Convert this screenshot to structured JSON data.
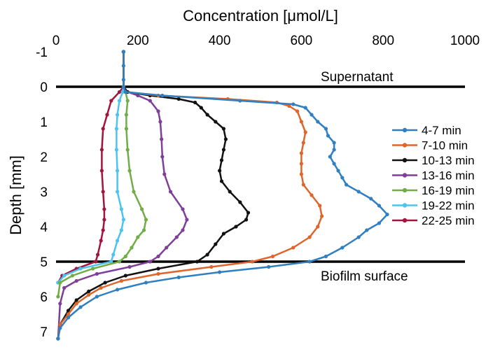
{
  "chart_data": {
    "type": "line",
    "xlabel": "Concentration [μmol/L]",
    "ylabel": "Depth [mm]",
    "xlim": [
      0,
      1000
    ],
    "ylim": [
      -1,
      7.2
    ],
    "x_axis_position": "top",
    "y_axis_inverted": true,
    "grid": false,
    "legend_position": "right",
    "x_ticks": [
      "0",
      "200",
      "400",
      "600",
      "800",
      "1000"
    ],
    "y_ticks": [
      "-1",
      "0",
      "1",
      "2",
      "3",
      "4",
      "5",
      "6",
      "7"
    ],
    "annotations": [
      {
        "text": "Supernatant",
        "depth": 0
      },
      {
        "text": "Biofilm surface",
        "depth": 5
      }
    ],
    "series": [
      {
        "name": "4-7 min",
        "color": "#2f7fc1",
        "points": [
          [
            165,
            -1.0
          ],
          [
            165,
            -0.6
          ],
          [
            165,
            -0.2
          ],
          [
            165,
            0.0
          ],
          [
            170,
            0.15
          ],
          [
            260,
            0.25
          ],
          [
            450,
            0.4
          ],
          [
            580,
            0.5
          ],
          [
            610,
            0.6
          ],
          [
            625,
            0.8
          ],
          [
            640,
            1.0
          ],
          [
            660,
            1.2
          ],
          [
            665,
            1.4
          ],
          [
            680,
            1.6
          ],
          [
            680,
            1.8
          ],
          [
            670,
            2.0
          ],
          [
            680,
            2.2
          ],
          [
            690,
            2.4
          ],
          [
            700,
            2.6
          ],
          [
            710,
            2.8
          ],
          [
            740,
            3.0
          ],
          [
            770,
            3.2
          ],
          [
            790,
            3.4
          ],
          [
            810,
            3.65
          ],
          [
            790,
            3.9
          ],
          [
            760,
            4.1
          ],
          [
            740,
            4.3
          ],
          [
            700,
            4.6
          ],
          [
            660,
            4.85
          ],
          [
            620,
            5.0
          ],
          [
            520,
            5.15
          ],
          [
            400,
            5.3
          ],
          [
            300,
            5.45
          ],
          [
            220,
            5.6
          ],
          [
            150,
            5.8
          ],
          [
            100,
            6.0
          ],
          [
            60,
            6.3
          ],
          [
            30,
            6.6
          ],
          [
            10,
            6.9
          ],
          [
            5,
            7.2
          ]
        ]
      },
      {
        "name": "7-10 min",
        "color": "#e0652b",
        "points": [
          [
            165,
            -1.0
          ],
          [
            165,
            0.0
          ],
          [
            170,
            0.15
          ],
          [
            250,
            0.25
          ],
          [
            420,
            0.35
          ],
          [
            540,
            0.45
          ],
          [
            570,
            0.55
          ],
          [
            590,
            0.7
          ],
          [
            600,
            1.0
          ],
          [
            610,
            1.3
          ],
          [
            605,
            1.6
          ],
          [
            600,
            1.9
          ],
          [
            600,
            2.2
          ],
          [
            600,
            2.5
          ],
          [
            605,
            2.8
          ],
          [
            625,
            3.1
          ],
          [
            645,
            3.4
          ],
          [
            650,
            3.7
          ],
          [
            640,
            4.0
          ],
          [
            620,
            4.3
          ],
          [
            580,
            4.6
          ],
          [
            530,
            4.85
          ],
          [
            480,
            5.0
          ],
          [
            380,
            5.15
          ],
          [
            250,
            5.35
          ],
          [
            160,
            5.55
          ],
          [
            110,
            5.75
          ],
          [
            80,
            5.95
          ],
          [
            50,
            6.2
          ],
          [
            30,
            6.5
          ],
          [
            10,
            6.8
          ],
          [
            5,
            7.2
          ]
        ]
      },
      {
        "name": "10-13 min",
        "color": "#111111",
        "points": [
          [
            165,
            -1.0
          ],
          [
            165,
            0.0
          ],
          [
            175,
            0.15
          ],
          [
            230,
            0.25
          ],
          [
            300,
            0.35
          ],
          [
            340,
            0.45
          ],
          [
            355,
            0.6
          ],
          [
            370,
            0.8
          ],
          [
            390,
            1.0
          ],
          [
            410,
            1.2
          ],
          [
            415,
            1.5
          ],
          [
            410,
            1.8
          ],
          [
            405,
            2.1
          ],
          [
            400,
            2.4
          ],
          [
            405,
            2.7
          ],
          [
            425,
            3.0
          ],
          [
            450,
            3.3
          ],
          [
            470,
            3.6
          ],
          [
            465,
            3.8
          ],
          [
            440,
            4.0
          ],
          [
            410,
            4.2
          ],
          [
            390,
            4.5
          ],
          [
            370,
            4.8
          ],
          [
            345,
            5.0
          ],
          [
            250,
            5.2
          ],
          [
            170,
            5.4
          ],
          [
            120,
            5.6
          ],
          [
            80,
            5.85
          ],
          [
            50,
            6.1
          ],
          [
            30,
            6.4
          ],
          [
            10,
            6.8
          ],
          [
            5,
            7.2
          ]
        ]
      },
      {
        "name": "13-16 min",
        "color": "#7f3f98",
        "points": [
          [
            165,
            -1.0
          ],
          [
            165,
            0.0
          ],
          [
            175,
            0.15
          ],
          [
            200,
            0.25
          ],
          [
            230,
            0.4
          ],
          [
            250,
            0.7
          ],
          [
            255,
            1.0
          ],
          [
            258,
            1.5
          ],
          [
            260,
            2.0
          ],
          [
            265,
            2.5
          ],
          [
            280,
            3.0
          ],
          [
            310,
            3.5
          ],
          [
            320,
            3.8
          ],
          [
            310,
            4.1
          ],
          [
            295,
            4.3
          ],
          [
            270,
            4.6
          ],
          [
            250,
            4.85
          ],
          [
            230,
            5.0
          ],
          [
            180,
            5.15
          ],
          [
            100,
            5.35
          ],
          [
            50,
            5.55
          ],
          [
            20,
            5.75
          ],
          [
            10,
            6.2
          ],
          [
            5,
            7.2
          ]
        ]
      },
      {
        "name": "16-19 min",
        "color": "#70ad47",
        "points": [
          [
            165,
            -1.0
          ],
          [
            165,
            0.0
          ],
          [
            170,
            0.15
          ],
          [
            175,
            0.4
          ],
          [
            172,
            0.8
          ],
          [
            172,
            1.2
          ],
          [
            175,
            1.8
          ],
          [
            180,
            2.4
          ],
          [
            190,
            3.0
          ],
          [
            210,
            3.5
          ],
          [
            220,
            3.8
          ],
          [
            215,
            4.1
          ],
          [
            200,
            4.3
          ],
          [
            185,
            4.6
          ],
          [
            170,
            4.85
          ],
          [
            155,
            5.0
          ],
          [
            90,
            5.2
          ],
          [
            40,
            5.4
          ],
          [
            10,
            5.6
          ],
          [
            5,
            6.0
          ]
        ]
      },
      {
        "name": "19-22 min",
        "color": "#4dc3f0",
        "points": [
          [
            165,
            -1.0
          ],
          [
            165,
            0.0
          ],
          [
            163,
            0.15
          ],
          [
            155,
            0.4
          ],
          [
            150,
            0.8
          ],
          [
            148,
            1.2
          ],
          [
            148,
            1.8
          ],
          [
            150,
            2.4
          ],
          [
            150,
            3.0
          ],
          [
            160,
            3.5
          ],
          [
            165,
            3.8
          ],
          [
            160,
            4.1
          ],
          [
            150,
            4.4
          ],
          [
            140,
            4.8
          ],
          [
            135,
            5.0
          ],
          [
            60,
            5.2
          ],
          [
            20,
            5.4
          ],
          [
            5,
            5.6
          ]
        ]
      },
      {
        "name": "22-25 min",
        "color": "#a3153f",
        "points": [
          [
            165,
            -1.0
          ],
          [
            165,
            0.0
          ],
          [
            155,
            0.15
          ],
          [
            135,
            0.4
          ],
          [
            125,
            0.8
          ],
          [
            115,
            1.2
          ],
          [
            112,
            1.8
          ],
          [
            112,
            2.4
          ],
          [
            115,
            3.0
          ],
          [
            118,
            3.5
          ],
          [
            118,
            3.8
          ],
          [
            115,
            4.1
          ],
          [
            110,
            4.4
          ],
          [
            102,
            4.8
          ],
          [
            97,
            5.0
          ],
          [
            50,
            5.2
          ],
          [
            15,
            5.4
          ],
          [
            5,
            5.6
          ]
        ]
      }
    ]
  }
}
